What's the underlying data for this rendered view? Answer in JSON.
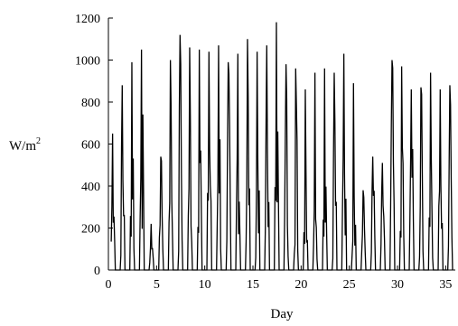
{
  "chart_data": {
    "type": "line",
    "title": "",
    "xlabel": "Day",
    "ylabel": "W/m",
    "ylabel_superscript": "2",
    "xlim": [
      0,
      36
    ],
    "ylim": [
      0,
      1200
    ],
    "x_ticks": [
      0,
      5,
      10,
      15,
      20,
      25,
      30,
      35
    ],
    "y_ticks": [
      0,
      200,
      400,
      600,
      800,
      1000,
      1200
    ],
    "x_tick_labels": [
      "0",
      "5",
      "10",
      "15",
      "20",
      "25",
      "30",
      "35"
    ],
    "y_tick_labels": [
      "0",
      "200",
      "400",
      "600",
      "800",
      "1000",
      "1200"
    ],
    "grid": false,
    "series": [
      {
        "color": "#000000",
        "daily_peaks": [
          {
            "day": 0,
            "peak": 650
          },
          {
            "day": 1,
            "peak": 880
          },
          {
            "day": 2,
            "peak": 990
          },
          {
            "day": 3,
            "peak": 1050
          },
          {
            "day": 4,
            "peak": 220
          },
          {
            "day": 5,
            "peak": 540
          },
          {
            "day": 6,
            "peak": 1000
          },
          {
            "day": 7,
            "peak": 1120
          },
          {
            "day": 8,
            "peak": 1060
          },
          {
            "day": 9,
            "peak": 1050
          },
          {
            "day": 10,
            "peak": 1040
          },
          {
            "day": 11,
            "peak": 1070
          },
          {
            "day": 12,
            "peak": 990
          },
          {
            "day": 13,
            "peak": 1030
          },
          {
            "day": 14,
            "peak": 1100
          },
          {
            "day": 15,
            "peak": 1040
          },
          {
            "day": 16,
            "peak": 1070
          },
          {
            "day": 17,
            "peak": 1180
          },
          {
            "day": 18,
            "peak": 980
          },
          {
            "day": 19,
            "peak": 960
          },
          {
            "day": 20,
            "peak": 860
          },
          {
            "day": 21,
            "peak": 940
          },
          {
            "day": 22,
            "peak": 960
          },
          {
            "day": 23,
            "peak": 940
          },
          {
            "day": 24,
            "peak": 1030
          },
          {
            "day": 25,
            "peak": 890
          },
          {
            "day": 26,
            "peak": 380
          },
          {
            "day": 27,
            "peak": 540
          },
          {
            "day": 28,
            "peak": 510
          },
          {
            "day": 29,
            "peak": 1000
          },
          {
            "day": 30,
            "peak": 970
          },
          {
            "day": 31,
            "peak": 860
          },
          {
            "day": 32,
            "peak": 870
          },
          {
            "day": 33,
            "peak": 940
          },
          {
            "day": 34,
            "peak": 860
          },
          {
            "day": 35,
            "peak": 880
          },
          {
            "day": 36,
            "peak": 830
          }
        ]
      }
    ]
  }
}
